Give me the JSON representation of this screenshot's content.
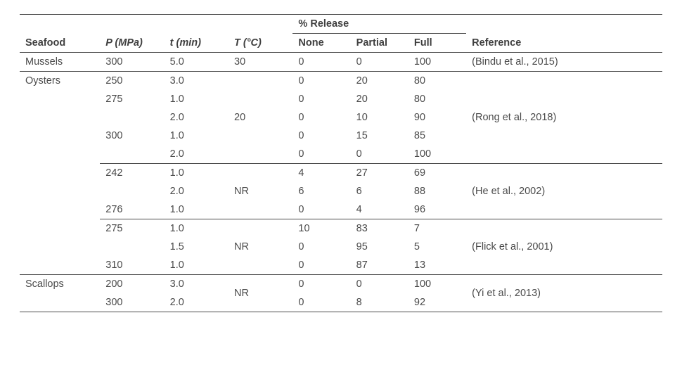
{
  "header": {
    "seafood": "Seafood",
    "pressure": "P (MPa)",
    "time": "t (min)",
    "temp": "T (°C)",
    "release_group": "% Release",
    "none": "None",
    "partial": "Partial",
    "full": "Full",
    "ref": "Reference"
  },
  "groups": [
    {
      "seafood": "Mussels",
      "ref": "(Bindu et al., 2015)",
      "temp": "30",
      "rows": [
        {
          "p": "300",
          "t": "5.0",
          "none": "0",
          "partial": "0",
          "full": "100"
        }
      ]
    },
    {
      "seafood": "Oysters",
      "subgroups": [
        {
          "ref": "(Rong et al., 2018)",
          "temp": "20",
          "rows": [
            {
              "p": "250",
              "t": "3.0",
              "none": "0",
              "partial": "20",
              "full": "80"
            },
            {
              "p": "275",
              "t": "1.0",
              "none": "0",
              "partial": "20",
              "full": "80"
            },
            {
              "p": "",
              "t": "2.0",
              "none": "0",
              "partial": "10",
              "full": "90"
            },
            {
              "p": "300",
              "t": "1.0",
              "none": "0",
              "partial": "15",
              "full": "85"
            },
            {
              "p": "",
              "t": "2.0",
              "none": "0",
              "partial": "0",
              "full": "100"
            }
          ]
        },
        {
          "ref": "(He et al., 2002)",
          "temp": "NR",
          "rows": [
            {
              "p": "242",
              "t": "1.0",
              "none": "4",
              "partial": "27",
              "full": "69"
            },
            {
              "p": "",
              "t": "2.0",
              "none": "6",
              "partial": "6",
              "full": "88"
            },
            {
              "p": "276",
              "t": "1.0",
              "none": "0",
              "partial": "4",
              "full": "96"
            }
          ]
        },
        {
          "ref": "(Flick et al., 2001)",
          "temp": "NR",
          "rows": [
            {
              "p": "275",
              "t": "1.0",
              "none": "10",
              "partial": "83",
              "full": "7"
            },
            {
              "p": "",
              "t": "1.5",
              "none": "0",
              "partial": "95",
              "full": "5"
            },
            {
              "p": "310",
              "t": "1.0",
              "none": "0",
              "partial": "87",
              "full": "13"
            }
          ]
        }
      ]
    },
    {
      "seafood": "Scallops",
      "ref": "(Yi et al., 2013)",
      "temp": "NR",
      "rows": [
        {
          "p": "200",
          "t": "3.0",
          "none": "0",
          "partial": "0",
          "full": "100"
        },
        {
          "p": "300",
          "t": "2.0",
          "none": "0",
          "partial": "8",
          "full": "92"
        }
      ]
    }
  ],
  "style": {
    "font_family": "Arial, Helvetica, sans-serif",
    "font_size_pt": 11,
    "text_color": "#4a4a4a",
    "rule_color": "#4a4a4a",
    "background": "#ffffff"
  }
}
